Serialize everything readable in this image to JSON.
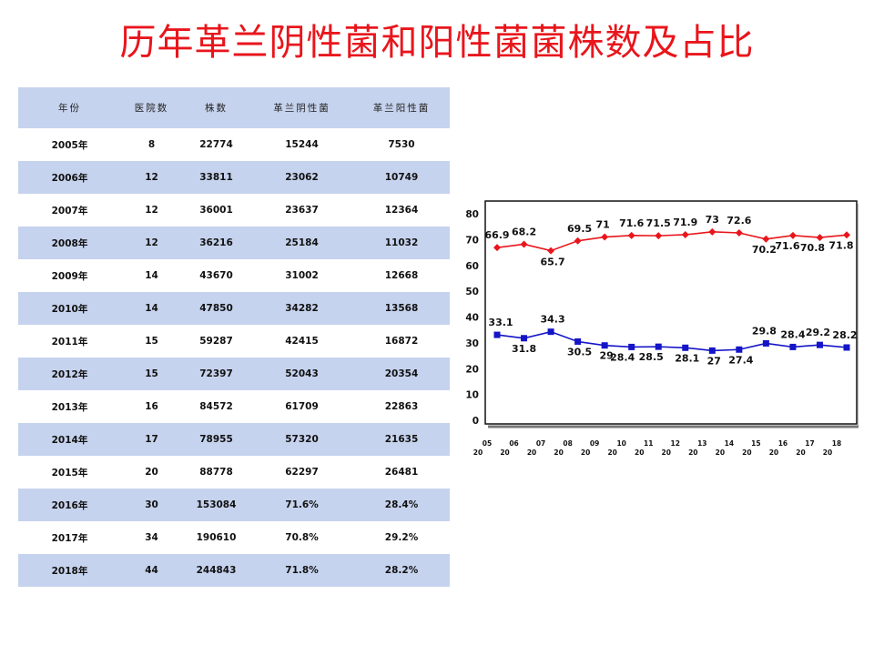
{
  "title": "历年革兰阴性菌和阳性菌菌株数及占比",
  "table": {
    "headers": [
      "年份",
      "医院数",
      "株数",
      "革兰阴性菌",
      "革兰阳性菌"
    ],
    "rows": [
      [
        "2005年",
        "8",
        "22774",
        "15244",
        "7530"
      ],
      [
        "2006年",
        "12",
        "33811",
        "23062",
        "10749"
      ],
      [
        "2007年",
        "12",
        "36001",
        "23637",
        "12364"
      ],
      [
        "2008年",
        "12",
        "36216",
        "25184",
        "11032"
      ],
      [
        "2009年",
        "14",
        "43670",
        "31002",
        "12668"
      ],
      [
        "2010年",
        "14",
        "47850",
        "34282",
        "13568"
      ],
      [
        "2011年",
        "15",
        "59287",
        "42415",
        "16872"
      ],
      [
        "2012年",
        "15",
        "72397",
        "52043",
        "20354"
      ],
      [
        "2013年",
        "16",
        "84572",
        "61709",
        "22863"
      ],
      [
        "2014年",
        "17",
        "78955",
        "57320",
        "21635"
      ],
      [
        "2015年",
        "20",
        "88778",
        "62297",
        "26481"
      ],
      [
        "2016年",
        "30",
        "153084",
        "71.6%",
        "28.4%"
      ],
      [
        "2017年",
        "34",
        "190610",
        "70.8%",
        "29.2%"
      ],
      [
        "2018年",
        "44",
        "244843",
        "71.8%",
        "28.2%"
      ]
    ]
  },
  "chart_data": {
    "type": "line",
    "x_ticks": [
      {
        "top": "05",
        "bottom": "20"
      },
      {
        "top": "06",
        "bottom": "20"
      },
      {
        "top": "07",
        "bottom": "20"
      },
      {
        "top": "08",
        "bottom": "20"
      },
      {
        "top": "09",
        "bottom": "20"
      },
      {
        "top": "10",
        "bottom": "20"
      },
      {
        "top": "11",
        "bottom": "20"
      },
      {
        "top": "12",
        "bottom": "20"
      },
      {
        "top": "13",
        "bottom": "20"
      },
      {
        "top": "14",
        "bottom": "20"
      },
      {
        "top": "15",
        "bottom": "20"
      },
      {
        "top": "16",
        "bottom": "20"
      },
      {
        "top": "17",
        "bottom": "20"
      },
      {
        "top": "18",
        "bottom": "20"
      }
    ],
    "series": [
      {
        "color": "#e8161c",
        "marker": "diamond",
        "values": [
          66.9,
          68.2,
          65.7,
          69.5,
          71,
          71.6,
          71.5,
          71.9,
          73,
          72.6,
          70.2,
          71.6,
          70.8,
          71.8
        ]
      },
      {
        "color": "#1414c8",
        "marker": "square",
        "values": [
          33.1,
          31.8,
          34.3,
          30.5,
          29,
          28.4,
          28.5,
          28.1,
          27,
          27.4,
          29.8,
          28.4,
          29.2,
          28.2
        ]
      }
    ],
    "y_ticks": [
      0,
      10,
      20,
      30,
      40,
      50,
      60,
      70,
      80
    ],
    "ylim": [
      0,
      80
    ],
    "grid": false,
    "legend": "none"
  }
}
